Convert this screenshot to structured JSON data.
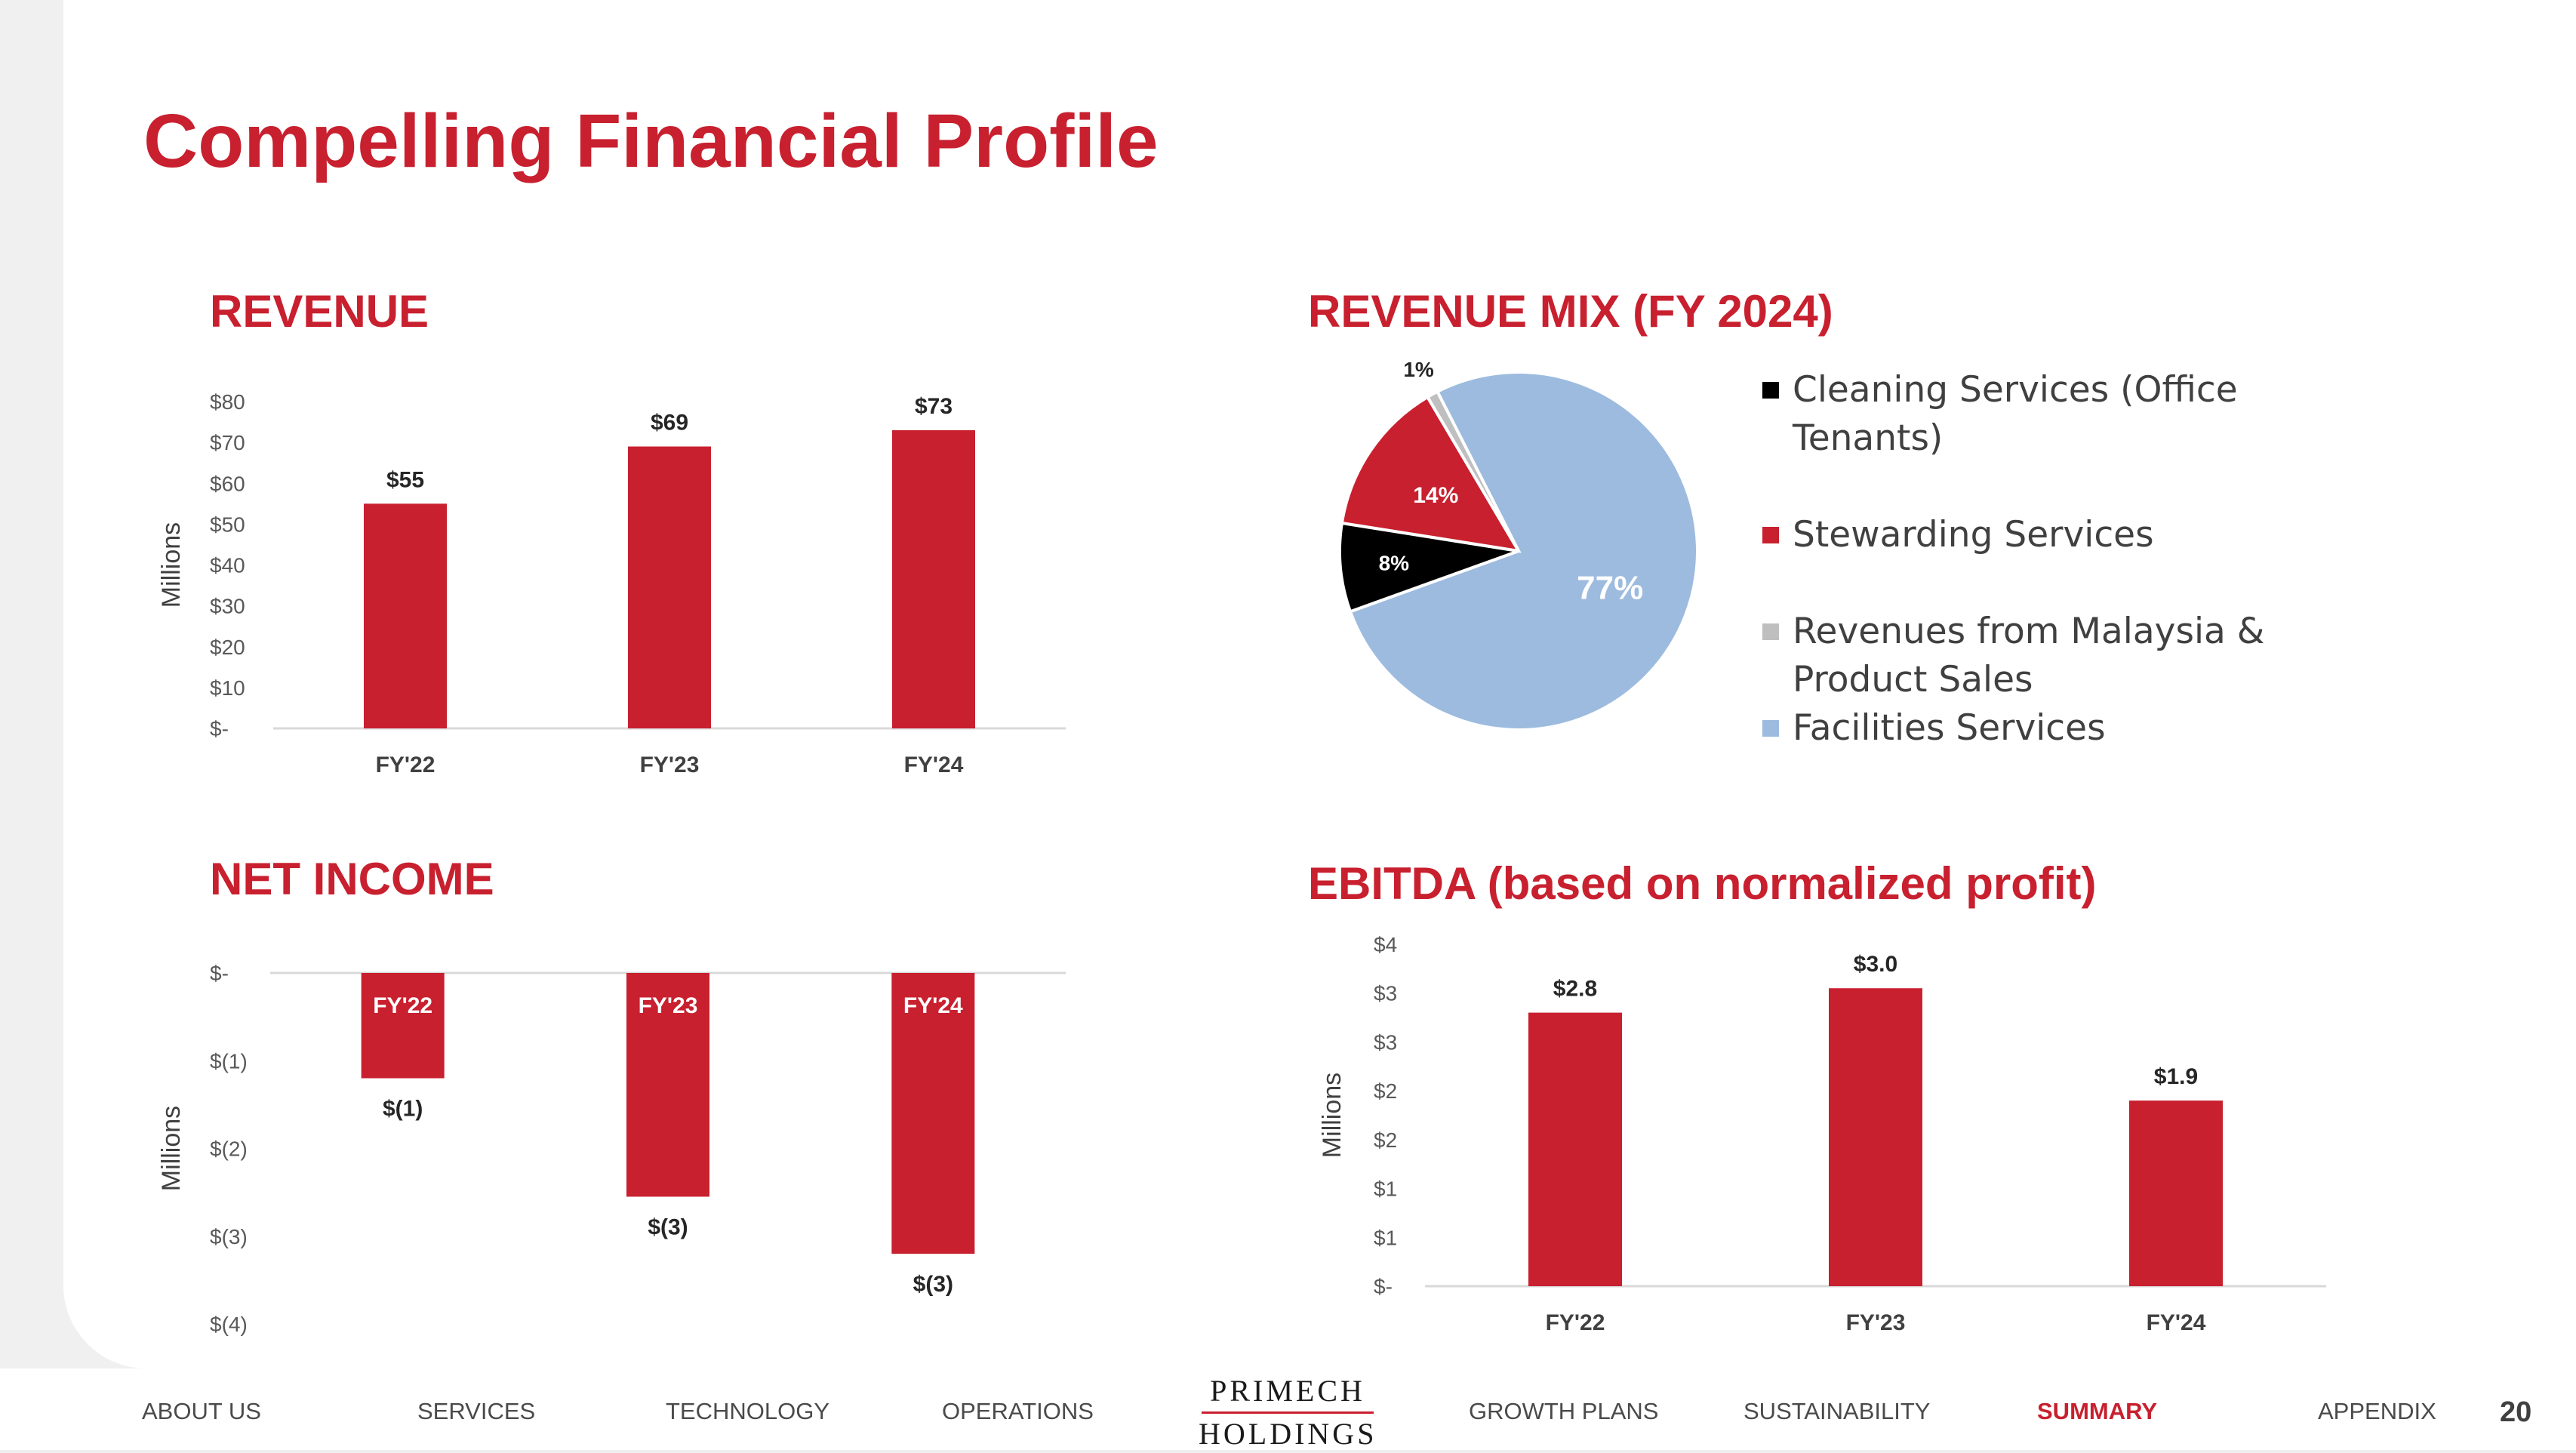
{
  "title": "Compelling Financial Profile",
  "sections": {
    "revenue": "REVENUE",
    "revenue_mix": "REVENUE MIX (FY 2024)",
    "net_income": "NET INCOME",
    "ebitda": "EBITDA (based on normalized profit)"
  },
  "colors": {
    "bar": "#c8202f",
    "black": "#000000",
    "grey": "#bfbfbf",
    "blue": "#9dbbdf",
    "accent": "#c8202f"
  },
  "chart_data": [
    {
      "id": "revenue",
      "type": "bar",
      "title": "REVENUE",
      "ylabel": "Millions",
      "categories": [
        "FY'22",
        "FY'23",
        "FY'24"
      ],
      "values": [
        55,
        69,
        73
      ],
      "value_labels": [
        "$55",
        "$69",
        "$73"
      ],
      "ylim": [
        0,
        80
      ],
      "y_ticks": [
        0,
        10,
        20,
        30,
        40,
        50,
        60,
        70,
        80
      ],
      "y_tick_labels": [
        "$-",
        "$10",
        "$20",
        "$30",
        "$40",
        "$50",
        "$60",
        "$70",
        "$80"
      ]
    },
    {
      "id": "revenue_mix",
      "type": "pie",
      "title": "REVENUE MIX (FY 2024)",
      "labels": [
        "Facilities Services",
        "Cleaning Services (Office Tenants)",
        "Stewarding Services",
        "Revenues from Malaysia & Product Sales"
      ],
      "values": [
        77,
        8,
        14,
        1
      ],
      "value_labels": [
        "77%",
        "8%",
        "14%",
        "1%"
      ],
      "legend": [
        "Cleaning Services (Office Tenants)",
        "Stewarding Services",
        "Revenues from Malaysia & Product Sales",
        "Facilities Services"
      ]
    },
    {
      "id": "net_income",
      "type": "bar",
      "title": "NET INCOME",
      "ylabel": "Millions",
      "categories": [
        "FY'22",
        "FY'23",
        "FY'24"
      ],
      "values": [
        -1.2,
        -2.55,
        -3.2
      ],
      "value_labels": [
        "$(1)",
        "$(3)",
        "$(3)"
      ],
      "ylim": [
        -4,
        0
      ],
      "y_ticks": [
        0,
        -1,
        -2,
        -3,
        -4
      ],
      "y_tick_labels": [
        "$-",
        "$(1)",
        "$(2)",
        "$(3)",
        "$(4)"
      ]
    },
    {
      "id": "ebitda",
      "type": "bar",
      "title": "EBITDA (based on normalized profit)",
      "ylabel": "Millions",
      "categories": [
        "FY'22",
        "FY'23",
        "FY'24"
      ],
      "values": [
        2.8,
        3.05,
        1.9
      ],
      "value_labels": [
        "$2.8",
        "$3.0",
        "$1.9"
      ],
      "ylim": [
        0,
        3.5
      ],
      "y_ticks": [
        0,
        0.5,
        1,
        1.5,
        2,
        2.5,
        3,
        3.5
      ],
      "y_tick_labels": [
        "$-",
        "$1",
        "$1",
        "$2",
        "$2",
        "$3",
        "$3",
        "$4"
      ]
    }
  ],
  "footer": {
    "nav": [
      "ABOUT US",
      "SERVICES",
      "TECHNOLOGY",
      "OPERATIONS",
      "GROWTH PLANS",
      "SUSTAINABILITY",
      "SUMMARY",
      "APPENDIX"
    ],
    "active": "SUMMARY",
    "logo_top": "PRIMECH",
    "logo_bottom": "HOLDINGS",
    "page_number": "20"
  }
}
